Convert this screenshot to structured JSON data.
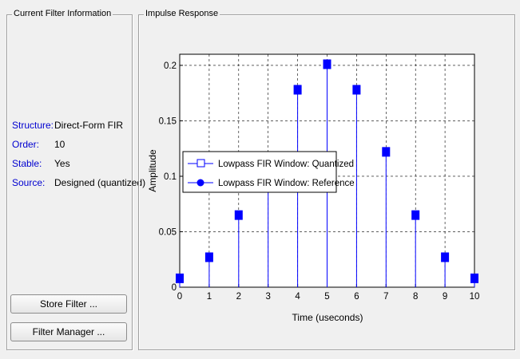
{
  "left_panel": {
    "title": "Current Filter Information",
    "info": [
      {
        "key": "Structure:",
        "value": "Direct-Form FIR"
      },
      {
        "key": "Order:",
        "value": "10"
      },
      {
        "key": "Stable:",
        "value": "Yes"
      },
      {
        "key": "Source:",
        "value": "Designed (quantized)"
      }
    ],
    "store_button": "Store Filter ...",
    "manager_button": "Filter Manager ..."
  },
  "right_panel": {
    "title": "Impulse Response"
  },
  "colors": {
    "stem": "#0000ff",
    "label_blue": "#0000d0",
    "grid": "#000000"
  },
  "chart_data": {
    "type": "stem",
    "title": "",
    "xlabel": "Time (useconds)",
    "ylabel": "Amplitude",
    "xlim": [
      0,
      10
    ],
    "ylim": [
      0,
      0.21
    ],
    "grid": true,
    "xticks": [
      "0",
      "1",
      "2",
      "3",
      "4",
      "5",
      "6",
      "7",
      "8",
      "9",
      "10"
    ],
    "yticks": [
      "0",
      "0.05",
      "0.1",
      "0.15",
      "0.2"
    ],
    "x": [
      0,
      1,
      2,
      3,
      4,
      5,
      6,
      7,
      8,
      9,
      10
    ],
    "series": [
      {
        "name": "Lowpass FIR Window: Quantized",
        "marker": "square",
        "values": [
          0.008,
          0.027,
          0.065,
          0.115,
          0.178,
          0.201,
          0.178,
          0.122,
          0.065,
          0.027,
          0.008
        ]
      },
      {
        "name": "Lowpass FIR Window: Reference",
        "marker": "circle",
        "values": [
          0.008,
          0.027,
          0.065,
          0.115,
          0.178,
          0.201,
          0.178,
          0.122,
          0.065,
          0.027,
          0.008
        ]
      }
    ],
    "legend_placement": "center-left"
  }
}
